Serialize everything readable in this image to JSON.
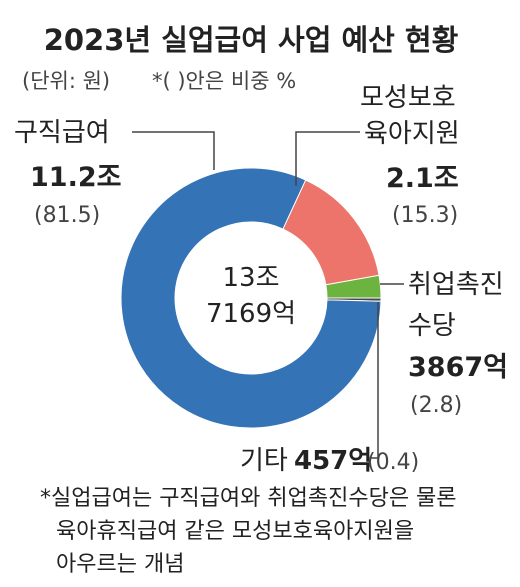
{
  "chart_data": {
    "type": "pie",
    "title": "2023년 실업급여 사업 예산 현황",
    "unit_note": "(단위: 원)",
    "pct_note": "*( )안은 비중 %",
    "center_label": [
      "13조",
      "7169억"
    ],
    "slices": [
      {
        "name": "구직급여",
        "name_lines": [
          "구직급여"
        ],
        "value_text": "11.2조",
        "pct": 81.5,
        "pct_text": "(81.5)",
        "color": "#3373b6"
      },
      {
        "name": "모성보호육아지원",
        "name_lines": [
          "모성보호",
          "육아지원"
        ],
        "value_text": "2.1조",
        "pct": 15.3,
        "pct_text": "(15.3)",
        "color": "#ec746a"
      },
      {
        "name": "취업촉진수당",
        "name_lines": [
          "취업촉진",
          "수당"
        ],
        "value_text": "3867억",
        "pct": 2.8,
        "pct_text": "(2.8)",
        "color": "#6db33f"
      },
      {
        "name": "기타",
        "name_lines": [
          "기타"
        ],
        "value_text": "457억",
        "pct": 0.4,
        "pct_text": "(0.4)",
        "color": "#4a4a4a"
      }
    ],
    "footnote": [
      "*실업급여는 구직급여와 취업촉진수당은 물론",
      "육아휴직급여 같은 모성보호육아지원을",
      "아우르는 개념"
    ]
  }
}
